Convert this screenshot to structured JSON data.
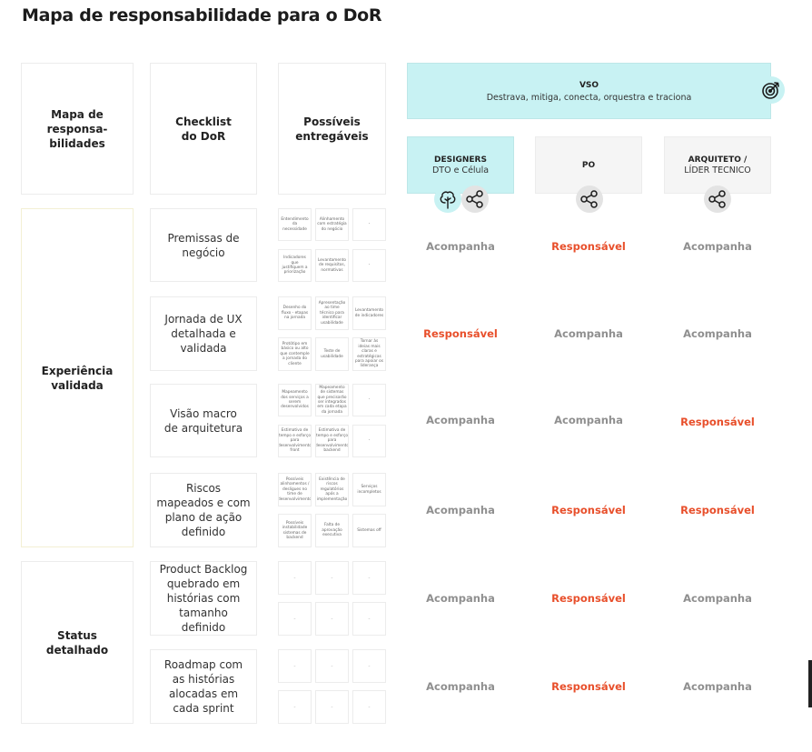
{
  "title": "Mapa de responsabilidade para o DoR",
  "headers": {
    "col1": [
      "Mapa de responsa-",
      "bilidades"
    ],
    "col2": [
      "Checklist",
      "do DoR"
    ],
    "col3": [
      "Possíveis",
      "entregáveis"
    ]
  },
  "vso": {
    "title": "VSO",
    "subtitle": "Destrava, mitiga, conecta, orquestra e traciona",
    "icon": "target-icon"
  },
  "roles": [
    {
      "name": "DESIGNERS",
      "sub": "DTO e Célula",
      "icons": [
        "tree-icon",
        "share-icon"
      ]
    },
    {
      "name": "PO",
      "sub": "",
      "icons": [
        "share-icon"
      ]
    },
    {
      "name": "ARQUITETO /",
      "sub": "LÍDER TECNICO",
      "icons": [
        "share-icon"
      ]
    }
  ],
  "groups": [
    {
      "label": "Experiência validada"
    },
    {
      "label": "Status detalhado"
    }
  ],
  "rows": [
    {
      "item": "Premissas de negócio",
      "deliverables": [
        "Entendimento da necessidade",
        "Alinhamento com estratégia do negócio",
        "-",
        "Indicadores que justifiquem a priorização",
        "Levantamento de requisitos, normativas",
        "-"
      ],
      "status": [
        "Acompanha",
        "Responsável",
        "Acompanha"
      ]
    },
    {
      "item": "Jornada de UX detalhada e validada",
      "deliverables": [
        "Desenho do fluxo - etapas na jornada",
        "Apresentação ao time técnico para identificar usabilidade",
        "Levantamento de indicadores",
        "Protótipo em básico ou alto que contemple a jornada do cliente",
        "Teste de usabilidade",
        "Tornar às ideias mais claras e estratégicas para apoiar os liderança"
      ],
      "status": [
        "Responsável",
        "Acompanha",
        "Acompanha"
      ]
    },
    {
      "item": "Visão macro de arquitetura",
      "deliverables": [
        "Mapeamento dos serviços a serem desenvolvidos",
        "Mapeamento de sistemas que precisarão ser integrados em cada etapa da jornada",
        "-",
        "Estimativa de tempo e esforço para desenvolvimento front",
        "Estimativa de tempo e esforço para desenvolvimento backend",
        "-"
      ],
      "status": [
        "Acompanha",
        "Acompanha",
        "Responsável"
      ]
    },
    {
      "item": "Riscos mapeados e com plano de ação definido",
      "deliverables": [
        "Possíveis alinhamentos / desligues no time de desenvolvimento",
        "Existência de riscos regulatórios após a implementação",
        "Serviços incompletos",
        "Possíveis instabilidade sistemas de backend",
        "Falta de aprovação executiva",
        "Sistemas off"
      ],
      "status": [
        "Acompanha",
        "Responsável",
        "Responsável"
      ]
    },
    {
      "item": "Product Backlog quebrado em histórias com tamanho definido",
      "deliverables": [
        "-",
        "-",
        "-",
        "-",
        "-",
        "-"
      ],
      "status": [
        "Acompanha",
        "Responsável",
        "Acompanha"
      ]
    },
    {
      "item": "Roadmap com as histórias alocadas em cada sprint",
      "deliverables": [
        "-",
        "-",
        "-",
        "-",
        "-",
        "-"
      ],
      "status": [
        "Acompanha",
        "Responsável",
        "Acompanha"
      ]
    }
  ],
  "colors": {
    "teal": "#c8f2f3",
    "responsible": "#e84f2b",
    "accompany": "#8f8f8f"
  }
}
